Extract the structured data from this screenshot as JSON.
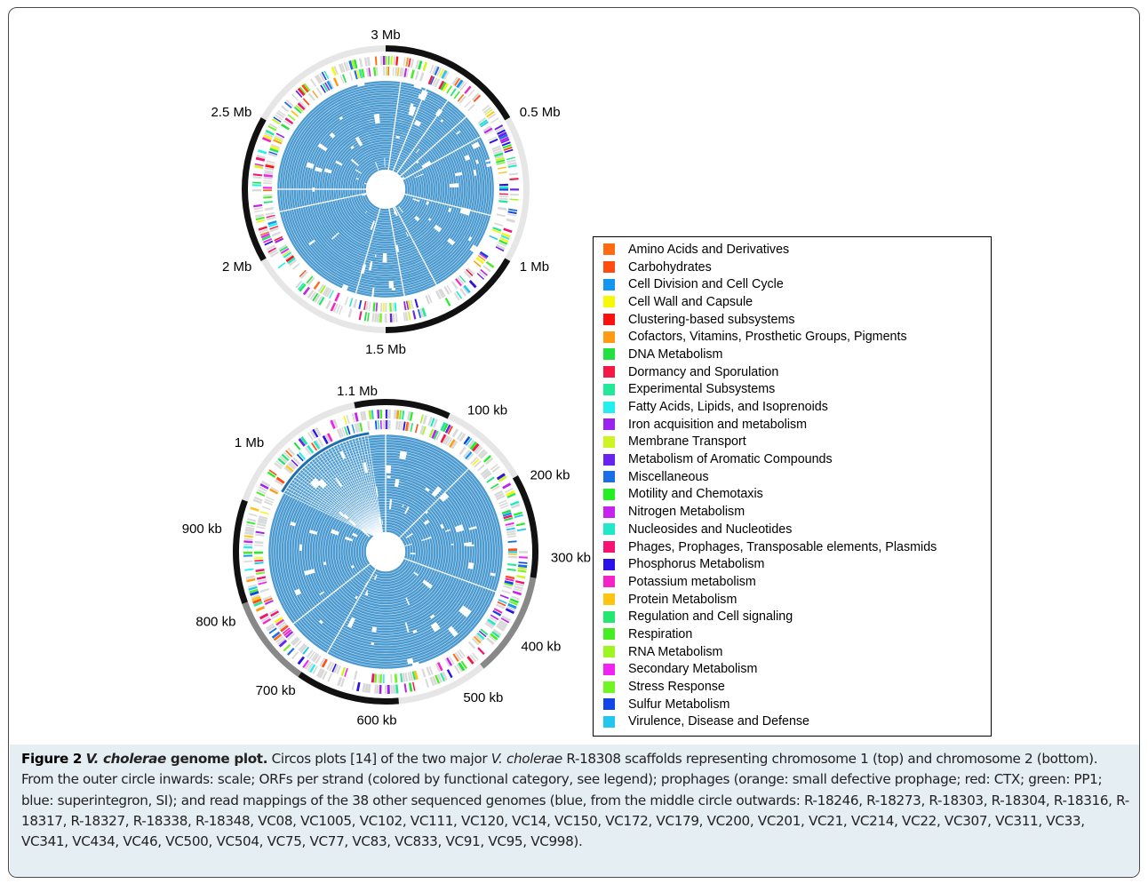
{
  "plot1": {
    "labels": [
      "3 Mb",
      "0.5 Mb",
      "1 Mb",
      "1.5 Mb",
      "2 Mb",
      "2.5 Mb"
    ]
  },
  "plot2": {
    "labels": [
      "1.1 Mb",
      "100 kb",
      "200 kb",
      "300 kb",
      "400 kb",
      "500 kb",
      "600 kb",
      "700 kb",
      "800 kb",
      "900 kb",
      "1 Mb"
    ]
  },
  "legend": [
    {
      "label": "Amino Acids and Derivatives",
      "color": "#ff6a13"
    },
    {
      "label": "Carbohydrates",
      "color": "#ff4d12"
    },
    {
      "label": "Cell Division and Cell Cycle",
      "color": "#1296f0"
    },
    {
      "label": "Cell Wall and Capsule",
      "color": "#f7f70a"
    },
    {
      "label": "Clustering-based subsystems",
      "color": "#ff1010"
    },
    {
      "label": "Cofactors, Vitamins, Prosthetic Groups, Pigments",
      "color": "#ff9a12"
    },
    {
      "label": "DNA Metabolism",
      "color": "#22e040"
    },
    {
      "label": "Dormancy and Sporulation",
      "color": "#f51845"
    },
    {
      "label": "Experimental Subsystems",
      "color": "#22e89a"
    },
    {
      "label": "Fatty Acids, Lipids, and Isoprenoids",
      "color": "#22f0ee"
    },
    {
      "label": "Iron acquisition and metabolism",
      "color": "#9a22ee"
    },
    {
      "label": "Membrane Transport",
      "color": "#cef522"
    },
    {
      "label": "Metabolism of Aromatic Compounds",
      "color": "#6a22ee"
    },
    {
      "label": "Miscellaneous",
      "color": "#1a6ee8"
    },
    {
      "label": "Motility and Chemotaxis",
      "color": "#22f022"
    },
    {
      "label": "Nitrogen Metabolism",
      "color": "#c522ee"
    },
    {
      "label": "Nucleosides and Nucleotides",
      "color": "#22e8c8"
    },
    {
      "label": "Phages, Prophages, Transposable elements, Plasmids",
      "color": "#f51270"
    },
    {
      "label": "Phosphorus Metabolism",
      "color": "#2a12e8"
    },
    {
      "label": "Potassium metabolism",
      "color": "#f522c8"
    },
    {
      "label": "Protein Metabolism",
      "color": "#ffc412"
    },
    {
      "label": "Regulation and Cell signaling",
      "color": "#22e870"
    },
    {
      "label": "Respiration",
      "color": "#44ee22"
    },
    {
      "label": "RNA Metabolism",
      "color": "#9ef522"
    },
    {
      "label": "Secondary Metabolism",
      "color": "#f222f2"
    },
    {
      "label": "Stress Response",
      "color": "#6ef522"
    },
    {
      "label": "Sulfur Metabolism",
      "color": "#1245e8"
    },
    {
      "label": "Virulence, Disease and Defense",
      "color": "#22c6ee"
    }
  ],
  "caption": {
    "figure_label": "Figure 2",
    "title_italic": "V. cholerae",
    "title_rest": " genome plot.",
    "text_1": " Circos plots [14] of the two major ",
    "italic_1": "V. cholerae",
    "text_2": " R-18308 scaffolds representing chromosome 1 (top) and chromosome 2 (bottom). From the outer circle inwards: scale; ORFs per strand (colored by functional category, see legend); prophages (orange: small defective prophage; red: CTX; green: PP1; blue: superintegron, SI); and read mappings of the 38 other sequenced genomes (blue, from the middle circle outwards: R-18246, R-18273, R-18303, R-18304, R-18316, R-18317, R-18327, R-18338, R-18348, VC08, VC1005, VC102, VC111, VC120, VC14, VC150, VC172, VC179, VC200, VC201, VC21, VC214, VC22, VC307, VC311, VC33, VC341, VC434, VC46, VC500, VC504, VC75, VC77, VC83, VC833, VC91, VC95, VC998)."
  }
}
